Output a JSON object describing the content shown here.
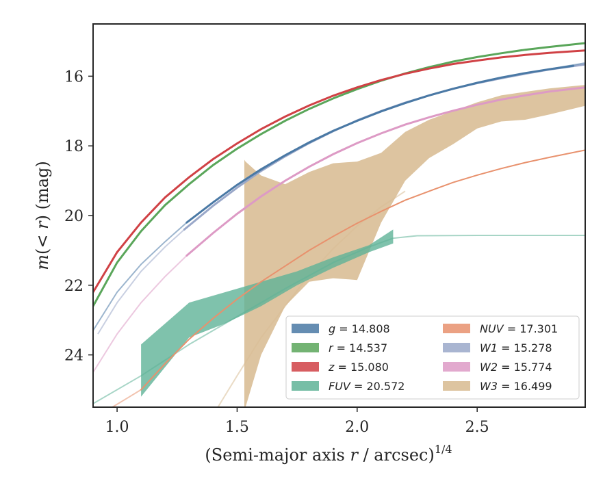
{
  "chart_data": {
    "type": "line",
    "xlabel": "(Semi-major axis r / arcsec)^{1/4}",
    "ylabel": "m(< r) (mag)",
    "xlim": [
      0.9,
      2.95
    ],
    "ylim": [
      25.5,
      14.5
    ],
    "y_inverted": true,
    "xticks": [
      "1.0",
      "1.5",
      "2.0",
      "2.5"
    ],
    "xtick_values": [
      1.0,
      1.5,
      2.0,
      2.5
    ],
    "yticks": [
      "16",
      "18",
      "20",
      "22",
      "24"
    ],
    "ytick_values": [
      16,
      18,
      20,
      22,
      24
    ],
    "grid": false,
    "legend_position": "lower-right",
    "series": [
      {
        "name": "g = 14.808",
        "key": "g",
        "label_math": "g",
        "value": "14.808",
        "color": "#4a79a5",
        "width": 3,
        "x": [
          1.29,
          1.4,
          1.5,
          1.6,
          1.7,
          1.8,
          1.9,
          2.0,
          2.1,
          2.2,
          2.3,
          2.4,
          2.5,
          2.6,
          2.7,
          2.8,
          2.9
        ],
        "y": [
          20.2,
          19.62,
          19.12,
          18.67,
          18.27,
          17.9,
          17.57,
          17.28,
          17.01,
          16.77,
          16.55,
          16.36,
          16.19,
          16.04,
          15.91,
          15.8,
          15.7
        ],
        "faint_x": [
          0.9,
          1.0,
          1.1,
          1.2,
          1.29,
          1.35,
          1.5,
          1.7,
          1.9,
          2.1,
          2.3,
          2.5,
          2.7,
          2.95
        ],
        "faint_y": [
          23.3,
          22.2,
          21.4,
          20.75,
          20.2,
          19.88,
          19.12,
          18.27,
          17.57,
          17.01,
          16.55,
          16.19,
          15.91,
          15.62
        ]
      },
      {
        "name": "r = 14.537",
        "key": "r",
        "label_math": "r",
        "value": "14.537",
        "color": "#5aa65a",
        "width": 3,
        "x": [
          0.9,
          1.0,
          1.1,
          1.2,
          1.3,
          1.4,
          1.5,
          1.6,
          1.7,
          1.8,
          1.9,
          2.0,
          2.1,
          2.2,
          2.3,
          2.4,
          2.5,
          2.6,
          2.7,
          2.8,
          2.95
        ],
        "y": [
          22.6,
          21.35,
          20.45,
          19.7,
          19.1,
          18.55,
          18.08,
          17.66,
          17.28,
          16.94,
          16.64,
          16.37,
          16.13,
          15.92,
          15.74,
          15.58,
          15.45,
          15.34,
          15.24,
          15.16,
          15.05
        ]
      },
      {
        "name": "z = 15.080",
        "key": "z",
        "label_math": "z",
        "value": "15.080",
        "color": "#d04145",
        "width": 3,
        "x": [
          0.9,
          1.0,
          1.1,
          1.2,
          1.3,
          1.4,
          1.5,
          1.6,
          1.7,
          1.8,
          1.9,
          2.0,
          2.1,
          2.2,
          2.3,
          2.4,
          2.5,
          2.6,
          2.7,
          2.8,
          2.95
        ],
        "y": [
          22.2,
          21.05,
          20.2,
          19.48,
          18.9,
          18.38,
          17.93,
          17.52,
          17.16,
          16.84,
          16.56,
          16.32,
          16.11,
          15.93,
          15.78,
          15.65,
          15.55,
          15.46,
          15.39,
          15.33,
          15.26
        ]
      },
      {
        "name": "FUV = 20.572",
        "key": "FUV",
        "label_math": "FUV",
        "value": "20.572",
        "color": "#5fb397",
        "width": 2,
        "band_x": [
          1.1,
          1.3,
          1.45,
          1.6,
          1.75,
          1.9,
          2.05,
          2.15
        ],
        "band_lower": [
          23.7,
          22.5,
          22.2,
          21.9,
          21.6,
          21.2,
          20.85,
          20.4
        ],
        "band_upper": [
          25.2,
          23.5,
          23.1,
          22.6,
          22.0,
          21.5,
          21.05,
          20.8
        ],
        "faint_x": [
          0.9,
          1.1,
          1.3,
          1.5,
          1.7,
          1.9,
          2.05,
          2.15,
          2.25,
          2.5,
          2.95
        ],
        "faint_y": [
          25.4,
          24.6,
          23.7,
          22.9,
          22.1,
          21.35,
          20.9,
          20.65,
          20.58,
          20.57,
          20.57
        ]
      },
      {
        "name": "NUV = 17.301",
        "key": "NUV",
        "label_math": "NUV",
        "value": "17.301",
        "color": "#e8916d",
        "width": 2,
        "x": [
          1.1,
          1.2,
          1.3,
          1.4,
          1.5,
          1.6,
          1.7,
          1.8,
          1.9,
          2.0,
          2.1,
          2.2,
          2.3,
          2.4,
          2.5,
          2.6,
          2.7,
          2.8,
          2.95
        ],
        "y": [
          25.0,
          24.25,
          23.55,
          22.95,
          22.4,
          21.9,
          21.45,
          21.0,
          20.6,
          20.22,
          19.88,
          19.56,
          19.3,
          19.05,
          18.84,
          18.65,
          18.48,
          18.33,
          18.12
        ],
        "faint_x": [
          0.98,
          1.04,
          1.1
        ],
        "faint_y": [
          25.5,
          25.25,
          25.0
        ]
      },
      {
        "name": "W1 = 15.278",
        "key": "W1",
        "label_math": "W1",
        "value": "15.278",
        "color": "#9aa8c9",
        "width": 3,
        "x": [
          1.28,
          1.4,
          1.5,
          1.6,
          1.7,
          1.8,
          1.9,
          2.0,
          2.1,
          2.2,
          2.3,
          2.4,
          2.5,
          2.6,
          2.7,
          2.8,
          2.9,
          2.95
        ],
        "y": [
          20.4,
          19.72,
          19.2,
          18.72,
          18.3,
          17.92,
          17.58,
          17.27,
          17.0,
          16.76,
          16.55,
          16.36,
          16.2,
          16.06,
          15.93,
          15.81,
          15.71,
          15.66
        ],
        "faint_x": [
          0.92,
          1.0,
          1.1,
          1.2,
          1.28
        ],
        "faint_y": [
          23.4,
          22.5,
          21.6,
          20.9,
          20.4
        ]
      },
      {
        "name": "W2 = 15.774",
        "key": "W2",
        "label_math": "W2",
        "value": "15.774",
        "color": "#dd9ac5",
        "width": 3,
        "x": [
          1.29,
          1.4,
          1.5,
          1.6,
          1.7,
          1.8,
          1.9,
          2.0,
          2.1,
          2.2,
          2.3,
          2.4,
          2.5,
          2.6,
          2.7,
          2.8,
          2.95
        ],
        "y": [
          21.15,
          20.5,
          19.95,
          19.45,
          19.0,
          18.6,
          18.24,
          17.92,
          17.64,
          17.39,
          17.18,
          16.99,
          16.82,
          16.67,
          16.55,
          16.44,
          16.32
        ],
        "faint_x": [
          0.9,
          1.0,
          1.1,
          1.2,
          1.29
        ],
        "faint_y": [
          24.5,
          23.4,
          22.5,
          21.75,
          21.15
        ]
      },
      {
        "name": "W3 = 16.499",
        "key": "W3",
        "label_math": "W3",
        "value": "16.499",
        "color": "#d9be96",
        "width": 2,
        "band_x": [
          1.53,
          1.535,
          1.6,
          1.7,
          1.8,
          1.9,
          2.0,
          2.1,
          2.2,
          2.3,
          2.4,
          2.5,
          2.6,
          2.7,
          2.8,
          2.95
        ],
        "band_lower": [
          18.4,
          18.45,
          18.85,
          19.1,
          18.75,
          18.5,
          18.45,
          18.2,
          17.6,
          17.25,
          17.0,
          16.75,
          16.55,
          16.45,
          16.35,
          16.25
        ],
        "band_upper": [
          25.5,
          25.5,
          24.0,
          22.6,
          21.9,
          21.8,
          21.85,
          20.2,
          19.0,
          18.35,
          17.95,
          17.5,
          17.3,
          17.25,
          17.1,
          16.85
        ],
        "faint_x": [
          1.42,
          1.5,
          1.6,
          1.7,
          1.8,
          1.9,
          2.0,
          2.1,
          2.2
        ],
        "faint_y": [
          25.5,
          24.6,
          23.5,
          22.6,
          21.7,
          20.95,
          20.3,
          19.75,
          19.3
        ]
      }
    ]
  }
}
